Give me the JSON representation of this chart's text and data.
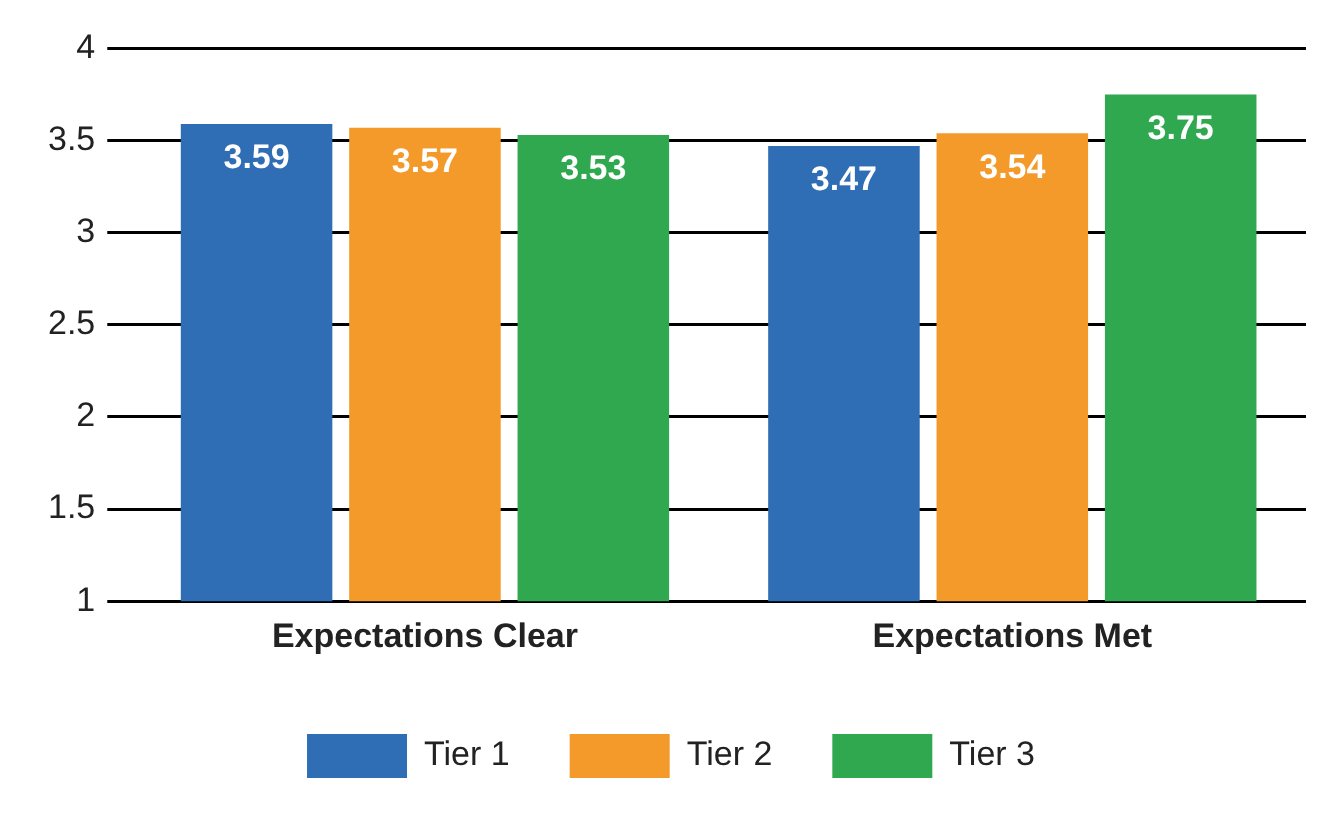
{
  "chart_data": {
    "type": "bar",
    "categories": [
      "Expectations Clear",
      "Expectations Met"
    ],
    "series": [
      {
        "name": "Tier 1",
        "color": "#2f6db5",
        "values": [
          3.59,
          3.47
        ]
      },
      {
        "name": "Tier 2",
        "color": "#f39a2a",
        "values": [
          3.57,
          3.54
        ]
      },
      {
        "name": "Tier 3",
        "color": "#2fa84f",
        "values": [
          3.53,
          3.75
        ]
      }
    ],
    "ylim": [
      1,
      4
    ],
    "yticks": [
      1,
      1.5,
      2,
      2.5,
      3,
      3.5,
      4
    ],
    "grid": "y",
    "legend": "bottom",
    "data_labels": true
  }
}
